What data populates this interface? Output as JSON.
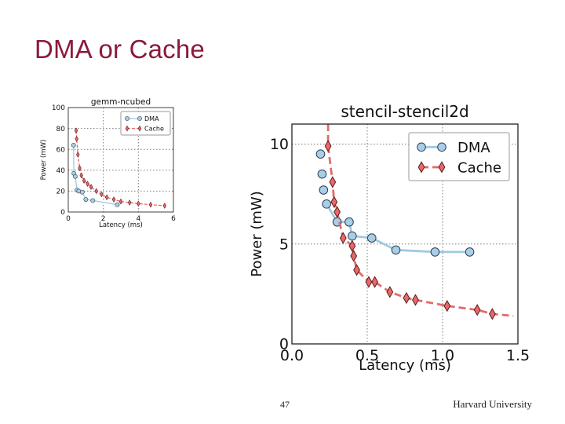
{
  "slide": {
    "title": "DMA or Cache",
    "page_number": "47",
    "footer": "Harvard University"
  },
  "colors": {
    "title": "#8b1a3a",
    "dma_fill": "#a9cfe6",
    "dma_line": "#9ecae1",
    "dma_edge": "#2b3d52",
    "cache_fill": "#e8686b",
    "cache_line": "#e46a6b",
    "cache_edge": "#5a1a1a",
    "grid": "#7a7a7a"
  },
  "chart_data": [
    {
      "type": "line",
      "title": "gemm-ncubed",
      "xlabel": "Latency (ms)",
      "ylabel": "Power (mW)",
      "xlim": [
        0,
        6
      ],
      "ylim": [
        0,
        100
      ],
      "xticks": [
        "0",
        "2",
        "4",
        "6"
      ],
      "yticks": [
        "0",
        "20",
        "40",
        "60",
        "80",
        "100"
      ],
      "grid": true,
      "legend_position": "top-right",
      "series": [
        {
          "name": "DMA",
          "style": "solid",
          "marker": "circle",
          "x": [
            0.3,
            0.32,
            0.4,
            0.5,
            0.6,
            0.8,
            1.0,
            1.4,
            2.8
          ],
          "y": [
            64,
            37,
            34,
            21,
            20,
            19,
            12,
            11,
            7
          ]
        },
        {
          "name": "Cache",
          "style": "dashed",
          "marker": "diamond",
          "x": [
            0.45,
            0.48,
            0.55,
            0.65,
            0.75,
            0.9,
            1.1,
            1.3,
            1.6,
            1.9,
            2.2,
            2.6,
            3.0,
            3.5,
            4.0,
            4.7,
            5.5
          ],
          "y": [
            78,
            70,
            55,
            42,
            35,
            30,
            27,
            24,
            20,
            17,
            14,
            12,
            10,
            9,
            8,
            7,
            6
          ]
        }
      ]
    },
    {
      "type": "line",
      "title": "stencil-stencil2d",
      "xlabel": "Latency (ms)",
      "ylabel": "Power (mW)",
      "xlim": [
        0.0,
        1.5
      ],
      "ylim": [
        0,
        11
      ],
      "xticks": [
        "0.0",
        "0.5",
        "1.0",
        "1.5"
      ],
      "yticks": [
        "0",
        "5",
        "10"
      ],
      "grid": true,
      "legend_position": "top-right",
      "series": [
        {
          "name": "DMA",
          "style": "solid",
          "marker": "circle",
          "x": [
            0.19,
            0.2,
            0.21,
            0.23,
            0.3,
            0.38,
            0.4,
            0.53,
            0.69,
            0.95,
            1.18
          ],
          "y": [
            9.5,
            8.5,
            7.7,
            7.0,
            6.1,
            6.1,
            5.4,
            5.3,
            4.7,
            4.6,
            4.6
          ],
          "line_from": 3
        },
        {
          "name": "Cache",
          "style": "dashed",
          "marker": "diamond",
          "x": [
            0.24,
            0.27,
            0.28,
            0.3,
            0.34,
            0.4,
            0.41,
            0.43,
            0.51,
            0.55,
            0.65,
            0.76,
            0.82,
            1.03,
            1.23,
            1.33
          ],
          "y": [
            9.9,
            8.1,
            7.1,
            6.6,
            5.3,
            4.9,
            4.4,
            3.7,
            3.1,
            3.1,
            2.6,
            2.3,
            2.2,
            1.9,
            1.7,
            1.5
          ],
          "line_extend_to": 1.47,
          "line_extend_value": 1.4,
          "line_start_value": 11.0
        }
      ]
    }
  ]
}
